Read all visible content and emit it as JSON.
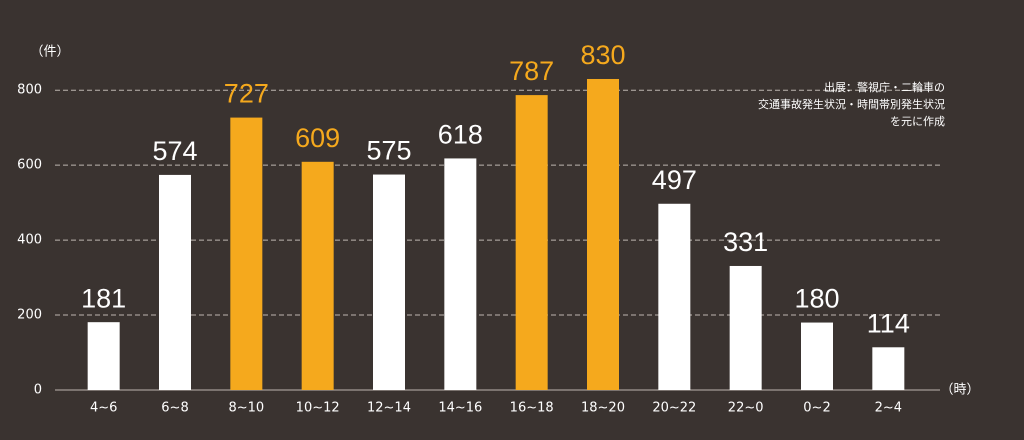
{
  "chart_data": {
    "type": "bar",
    "y_unit": "（件）",
    "x_unit": "（時）",
    "note": [
      "出展：警視庁・二輪車の",
      "交通事故発生状況・時間帯別発生状況",
      "を元に作成"
    ],
    "categories": [
      "4~6",
      "6~8",
      "8~10",
      "10~12",
      "12~14",
      "14~16",
      "16~18",
      "18~20",
      "20~22",
      "22~0",
      "0~2",
      "2~4"
    ],
    "values": [
      181,
      574,
      727,
      609,
      575,
      618,
      787,
      830,
      497,
      331,
      180,
      114
    ],
    "colors": [
      "#ffffff",
      "#ffffff",
      "#f5a91d",
      "#f5a91d",
      "#ffffff",
      "#ffffff",
      "#f5a91d",
      "#f5a91d",
      "#ffffff",
      "#ffffff",
      "#ffffff",
      "#ffffff"
    ],
    "ylim": [
      0,
      870
    ],
    "yticks": [
      0,
      200,
      400,
      600,
      800
    ],
    "grid": true
  }
}
